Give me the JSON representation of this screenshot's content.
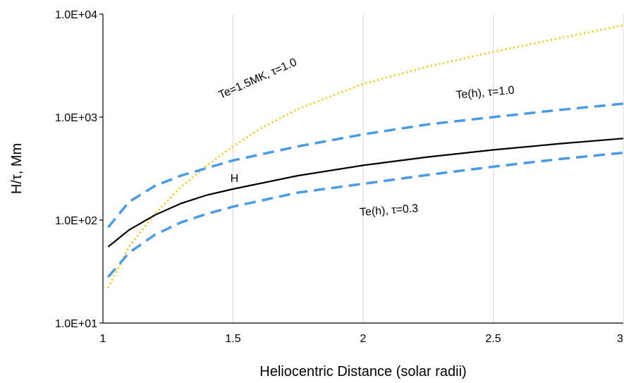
{
  "chart_data": {
    "type": "line",
    "xlabel": "Heliocentric Distance (solar radii)",
    "ylabel": "H/τ, Mm",
    "xlim": [
      1,
      3
    ],
    "ylim": [
      10,
      10000
    ],
    "yscale": "log",
    "xticks": [
      1,
      1.5,
      2,
      2.5,
      3
    ],
    "xtick_labels": [
      "1",
      "1.5",
      "2",
      "2.5",
      "3"
    ],
    "yticks": [
      10,
      100,
      1000,
      10000
    ],
    "ytick_labels": [
      "1.0E+01",
      "1.0E+02",
      "1.0E+03",
      "1.0E+04"
    ],
    "grid": "vertical",
    "legend": "none",
    "series": [
      {
        "key": "te-fixed",
        "name": "Te=1.5MK, τ=1.0",
        "color": "#f2c811",
        "style": "dotted",
        "x": [
          1.02,
          1.1,
          1.2,
          1.3,
          1.4,
          1.5,
          1.6,
          1.75,
          2.0,
          2.25,
          2.5,
          2.75,
          3.0
        ],
        "y": [
          22,
          55,
          115,
          210,
          340,
          520,
          760,
          1200,
          2100,
          3100,
          4300,
          5800,
          7800
        ]
      },
      {
        "key": "te-h-1",
        "name": "Te(h), τ=1.0",
        "color": "#4a9be5",
        "style": "dashed",
        "x": [
          1.02,
          1.1,
          1.2,
          1.3,
          1.4,
          1.5,
          1.75,
          2.0,
          2.25,
          2.5,
          2.75,
          3.0
        ],
        "y": [
          85,
          150,
          215,
          270,
          320,
          380,
          520,
          680,
          850,
          1000,
          1170,
          1350
        ]
      },
      {
        "key": "h",
        "name": "H",
        "color": "#000000",
        "style": "solid",
        "x": [
          1.02,
          1.1,
          1.2,
          1.3,
          1.4,
          1.5,
          1.75,
          2.0,
          2.25,
          2.5,
          2.75,
          3.0
        ],
        "y": [
          55,
          80,
          112,
          145,
          175,
          200,
          270,
          340,
          410,
          480,
          550,
          620
        ]
      },
      {
        "key": "te-h-03",
        "name": "Te(h), τ=0.3",
        "color": "#4a9be5",
        "style": "dashed",
        "x": [
          1.02,
          1.1,
          1.2,
          1.3,
          1.4,
          1.5,
          1.75,
          2.0,
          2.25,
          2.5,
          2.75,
          3.0
        ],
        "y": [
          28,
          48,
          72,
          95,
          115,
          135,
          185,
          225,
          275,
          330,
          390,
          450
        ]
      }
    ],
    "annotations": [
      {
        "key": "te-fixed",
        "text": "Te=1.5MK, τ=1.0",
        "x": 1.6,
        "y": 2200,
        "rotate": -24
      },
      {
        "key": "te-h-1",
        "text": "Te(h), τ=1.0",
        "x": 2.47,
        "y": 1600,
        "rotate": -5
      },
      {
        "key": "h",
        "text": "H",
        "x": 1.505,
        "y": 235,
        "rotate": 0
      },
      {
        "key": "te-h-03",
        "text": "Te(h), τ=0.3",
        "x": 2.1,
        "y": 115,
        "rotate": -4
      }
    ]
  }
}
